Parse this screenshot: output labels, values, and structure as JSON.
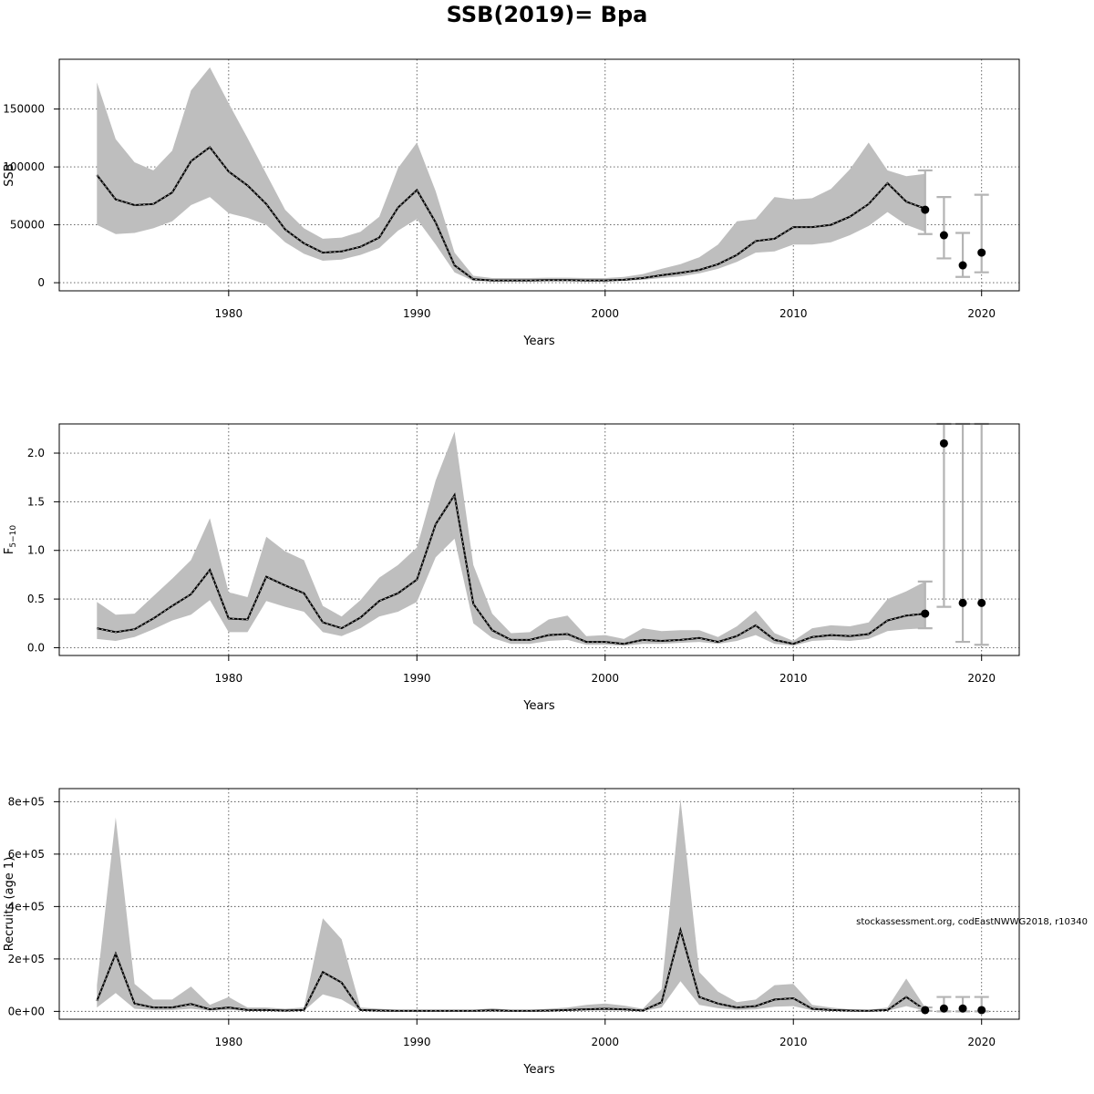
{
  "title": "SSB(2019)= Bpa",
  "credit": "stockassessment.org, codEastNWWG2018, r10340",
  "chart_data": [
    {
      "type": "line",
      "name": "ssb",
      "ylabel": "SSB",
      "xlabel": "Years",
      "xlim": [
        1971,
        2022
      ],
      "ylim": [
        -7000,
        193000
      ],
      "xticks": [
        1980,
        1990,
        2000,
        2010,
        2020
      ],
      "yticks": [
        0,
        50000,
        100000,
        150000
      ],
      "ytick_labels": [
        "0",
        "50000",
        "100000",
        "150000"
      ],
      "grid": true,
      "years": [
        1973,
        1974,
        1975,
        1976,
        1977,
        1978,
        1979,
        1980,
        1981,
        1982,
        1983,
        1984,
        1985,
        1986,
        1987,
        1988,
        1989,
        1990,
        1991,
        1992,
        1993,
        1994,
        1995,
        1996,
        1997,
        1998,
        1999,
        2000,
        2001,
        2002,
        2003,
        2004,
        2005,
        2006,
        2007,
        2008,
        2009,
        2010,
        2011,
        2012,
        2013,
        2014,
        2015,
        2016,
        2017
      ],
      "estimate": [
        93000,
        72000,
        67000,
        68000,
        78000,
        105000,
        117000,
        96000,
        84000,
        68000,
        46000,
        34000,
        26000,
        27000,
        31000,
        39000,
        65000,
        80000,
        52000,
        15000,
        3000,
        2000,
        2000,
        2000,
        2200,
        2200,
        2000,
        2000,
        2500,
        4000,
        6500,
        8500,
        11000,
        16000,
        24000,
        36000,
        38000,
        48000,
        48000,
        50000,
        57000,
        68000,
        86000,
        70000,
        64000
      ],
      "lower": [
        50000,
        42000,
        43000,
        47000,
        53000,
        67000,
        74000,
        60000,
        56000,
        50000,
        35000,
        25000,
        19000,
        20000,
        24000,
        30000,
        45000,
        55000,
        33000,
        9000,
        1500,
        1000,
        1000,
        1000,
        1200,
        1200,
        1000,
        1000,
        1500,
        2500,
        4000,
        5500,
        8000,
        12000,
        18000,
        26000,
        27000,
        33000,
        33000,
        35000,
        41000,
        49000,
        61000,
        50000,
        44000
      ],
      "upper": [
        173000,
        124000,
        104000,
        97000,
        114000,
        166000,
        186000,
        155000,
        125000,
        94000,
        63000,
        47000,
        38000,
        39000,
        44000,
        57000,
        99000,
        121000,
        79000,
        26000,
        6000,
        4000,
        4000,
        4000,
        4300,
        4300,
        4000,
        4000,
        5000,
        7500,
        12000,
        16000,
        22000,
        33000,
        53000,
        55000,
        74000,
        72000,
        73000,
        81000,
        98000,
        121000,
        97000,
        92000,
        94000
      ],
      "forecast": [
        {
          "year": 2017,
          "value": 63000,
          "lower": 42000,
          "upper": 97000
        },
        {
          "year": 2018,
          "value": 41000,
          "lower": 21000,
          "upper": 74000
        },
        {
          "year": 2019,
          "value": 15000,
          "lower": 5000,
          "upper": 43000
        },
        {
          "year": 2020,
          "value": 26000,
          "lower": 9000,
          "upper": 76000
        }
      ]
    },
    {
      "type": "line",
      "name": "fbar",
      "ylabel": "F",
      "ylabel_sub": "5−10",
      "xlabel": "Years",
      "xlim": [
        1971,
        2022
      ],
      "ylim": [
        -0.08,
        2.3
      ],
      "xticks": [
        1980,
        1990,
        2000,
        2010,
        2020
      ],
      "yticks": [
        0,
        0.5,
        1,
        1.5,
        2
      ],
      "ytick_labels": [
        "0.0",
        "0.5",
        "1.0",
        "1.5",
        "2.0"
      ],
      "grid": true,
      "years": [
        1973,
        1974,
        1975,
        1976,
        1977,
        1978,
        1979,
        1980,
        1981,
        1982,
        1983,
        1984,
        1985,
        1986,
        1987,
        1988,
        1989,
        1990,
        1991,
        1992,
        1993,
        1994,
        1995,
        1996,
        1997,
        1998,
        1999,
        2000,
        2001,
        2002,
        2003,
        2004,
        2005,
        2006,
        2007,
        2008,
        2009,
        2010,
        2011,
        2012,
        2013,
        2014,
        2015,
        2016,
        2017
      ],
      "estimate": [
        0.2,
        0.16,
        0.19,
        0.3,
        0.43,
        0.55,
        0.8,
        0.3,
        0.29,
        0.73,
        0.64,
        0.56,
        0.26,
        0.2,
        0.31,
        0.48,
        0.56,
        0.7,
        1.27,
        1.57,
        0.45,
        0.18,
        0.08,
        0.08,
        0.13,
        0.14,
        0.06,
        0.06,
        0.04,
        0.08,
        0.07,
        0.08,
        0.1,
        0.06,
        0.12,
        0.23,
        0.08,
        0.04,
        0.11,
        0.13,
        0.12,
        0.14,
        0.28,
        0.33,
        0.35
      ],
      "lower": [
        0.09,
        0.07,
        0.11,
        0.19,
        0.28,
        0.34,
        0.49,
        0.16,
        0.16,
        0.48,
        0.42,
        0.37,
        0.16,
        0.12,
        0.2,
        0.32,
        0.37,
        0.47,
        0.93,
        1.12,
        0.25,
        0.1,
        0.04,
        0.04,
        0.07,
        0.08,
        0.03,
        0.03,
        0.02,
        0.04,
        0.04,
        0.05,
        0.06,
        0.04,
        0.07,
        0.13,
        0.04,
        0.02,
        0.07,
        0.08,
        0.07,
        0.09,
        0.17,
        0.19,
        0.2
      ],
      "upper": [
        0.47,
        0.34,
        0.35,
        0.53,
        0.71,
        0.9,
        1.33,
        0.57,
        0.52,
        1.14,
        0.99,
        0.9,
        0.43,
        0.32,
        0.49,
        0.72,
        0.85,
        1.03,
        1.72,
        2.22,
        0.85,
        0.35,
        0.15,
        0.16,
        0.29,
        0.33,
        0.12,
        0.13,
        0.09,
        0.2,
        0.17,
        0.18,
        0.18,
        0.11,
        0.22,
        0.38,
        0.15,
        0.07,
        0.2,
        0.23,
        0.22,
        0.26,
        0.5,
        0.58,
        0.68
      ],
      "forecast": [
        {
          "year": 2017,
          "value": 0.35,
          "lower": 0.2,
          "upper": 0.68
        },
        {
          "year": 2018,
          "value": 2.1,
          "lower": 0.42,
          "upper": 2.3
        },
        {
          "year": 2019,
          "value": 0.46,
          "lower": 0.06,
          "upper": 2.3
        },
        {
          "year": 2020,
          "value": 0.46,
          "lower": 0.03,
          "upper": 2.3
        }
      ]
    },
    {
      "type": "line",
      "name": "recruits",
      "ylabel": "Recruits (age 1)",
      "xlabel": "Years",
      "xlim": [
        1971,
        2022
      ],
      "ylim": [
        -30000,
        850000
      ],
      "xticks": [
        1980,
        1990,
        2000,
        2010,
        2020
      ],
      "yticks": [
        0,
        200000,
        400000,
        600000,
        800000
      ],
      "ytick_labels": [
        "0e+00",
        "2e+05",
        "4e+05",
        "6e+05",
        "8e+05"
      ],
      "grid": true,
      "years": [
        1973,
        1974,
        1975,
        1976,
        1977,
        1978,
        1979,
        1980,
        1981,
        1982,
        1983,
        1984,
        1985,
        1986,
        1987,
        1988,
        1989,
        1990,
        1991,
        1992,
        1993,
        1994,
        1995,
        1996,
        1997,
        1998,
        1999,
        2000,
        2001,
        2002,
        2003,
        2004,
        2005,
        2006,
        2007,
        2008,
        2009,
        2010,
        2011,
        2012,
        2013,
        2014,
        2015,
        2016,
        2017
      ],
      "estimate": [
        40000,
        220000,
        30000,
        15000,
        15000,
        28000,
        8000,
        15000,
        5000,
        5000,
        3000,
        5000,
        150000,
        110000,
        5000,
        3000,
        2000,
        2000,
        2000,
        2000,
        2000,
        4000,
        2000,
        2000,
        3000,
        5000,
        8000,
        10000,
        8000,
        3000,
        35000,
        310000,
        55000,
        30000,
        15000,
        20000,
        45000,
        50000,
        10000,
        5000,
        3000,
        2000,
        5000,
        55000,
        5000
      ],
      "lower": [
        15000,
        70000,
        10000,
        5000,
        5000,
        10000,
        3000,
        6000,
        2000,
        2000,
        1000,
        2000,
        65000,
        45000,
        2000,
        1000,
        800,
        800,
        800,
        800,
        800,
        1500,
        800,
        800,
        1200,
        2000,
        3000,
        4000,
        3000,
        1000,
        15000,
        115000,
        25000,
        12000,
        6000,
        8000,
        18000,
        20000,
        4000,
        2000,
        1000,
        800,
        2000,
        20000,
        2000
      ],
      "upper": [
        100000,
        740000,
        105000,
        45000,
        45000,
        95000,
        25000,
        55000,
        15000,
        15000,
        10000,
        15000,
        355000,
        275000,
        15000,
        10000,
        6000,
        6000,
        6000,
        6000,
        6000,
        12000,
        6000,
        6000,
        10000,
        15000,
        25000,
        30000,
        22000,
        10000,
        85000,
        810000,
        150000,
        75000,
        35000,
        45000,
        100000,
        105000,
        25000,
        15000,
        8000,
        6000,
        15000,
        125000,
        15000
      ],
      "forecast": [
        {
          "year": 2017,
          "value": 5000,
          "lower": 2000,
          "upper": 15000
        },
        {
          "year": 2018,
          "value": 11000,
          "lower": 0,
          "upper": 55000
        },
        {
          "year": 2019,
          "value": 11000,
          "lower": 0,
          "upper": 55000
        },
        {
          "year": 2020,
          "value": 5000,
          "lower": 0,
          "upper": 55000
        }
      ]
    }
  ]
}
